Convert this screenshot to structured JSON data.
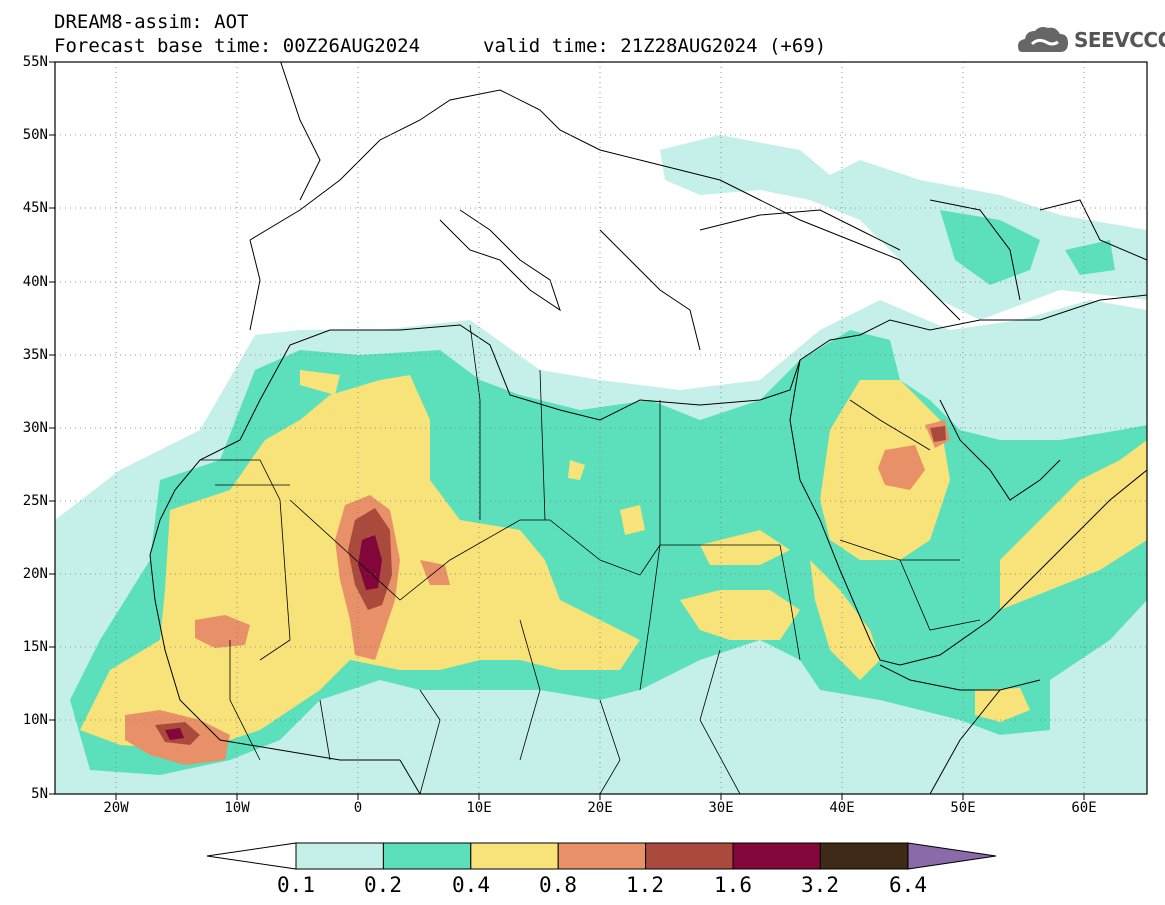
{
  "header": {
    "title": "DREAM8-assim: AOT",
    "base_time": "Forecast base time: 00Z26AUG2024",
    "valid_time": "valid time: 21Z28AUG2024 (+69)"
  },
  "logo": {
    "name": "SEEVCCC",
    "icon": "cloud-logo-icon"
  },
  "axes": {
    "lat_labels": [
      "55N",
      "50N",
      "45N",
      "40N",
      "35N",
      "30N",
      "25N",
      "20N",
      "15N",
      "10N",
      "5N"
    ],
    "lon_labels": [
      "20W",
      "10W",
      "0",
      "10E",
      "20E",
      "30E",
      "40E",
      "50E",
      "60E"
    ],
    "lon_range": [
      -25,
      65
    ],
    "lat_range": [
      5,
      55
    ]
  },
  "colorbar": {
    "labels": [
      "0.1",
      "0.2",
      "0.4",
      "0.8",
      "1.2",
      "1.6",
      "3.2",
      "6.4"
    ],
    "colors": [
      "#c5f0e9",
      "#5ce0bb",
      "#f7e37a",
      "#e89168",
      "#a94a3d",
      "#82063a",
      "#3e2a16",
      "#8a6aa8"
    ],
    "low_end_color": "#ffffff"
  },
  "map_colors": {
    "light": "#c5f0e9",
    "teal": "#5ce0bb",
    "yellow": "#f7e37a",
    "orange": "#e89168",
    "brown": "#a94a3d",
    "maroon": "#82063a"
  }
}
